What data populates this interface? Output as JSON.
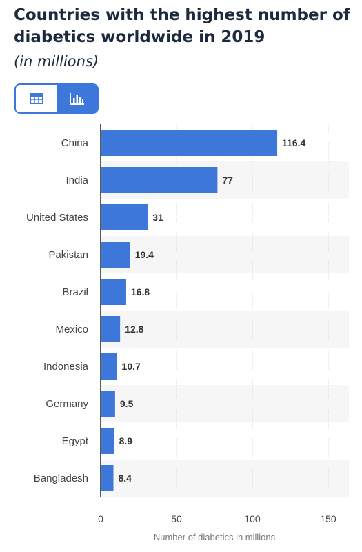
{
  "header": {
    "title": "Countries with the highest number of diabetics worldwide in 2019",
    "subtitle": "(in millions)"
  },
  "view_toggle": {
    "options": [
      {
        "icon": "table-icon",
        "selected": false
      },
      {
        "icon": "bar-chart-icon",
        "selected": true
      }
    ]
  },
  "colors": {
    "bar": "#3d77d9",
    "accent": "#3d77d9",
    "grid": "#c8c8c8",
    "stripe": "#f6f6f6"
  },
  "chart_data": {
    "type": "bar",
    "orientation": "horizontal",
    "categories": [
      "China",
      "India",
      "United States",
      "Pakistan",
      "Brazil",
      "Mexico",
      "Indonesia",
      "Germany",
      "Egypt",
      "Bangladesh"
    ],
    "values": [
      116.4,
      77,
      31,
      19.4,
      16.8,
      12.8,
      10.7,
      9.5,
      8.9,
      8.4
    ],
    "value_labels": [
      "116.4",
      "77",
      "31",
      "19.4",
      "16.8",
      "12.8",
      "10.7",
      "9.5",
      "8.9",
      "8.4"
    ],
    "xlabel": "Number of diabetics in millions",
    "xlim": [
      0,
      150
    ],
    "xticks": [
      0,
      50,
      100,
      150
    ],
    "grid": true
  }
}
